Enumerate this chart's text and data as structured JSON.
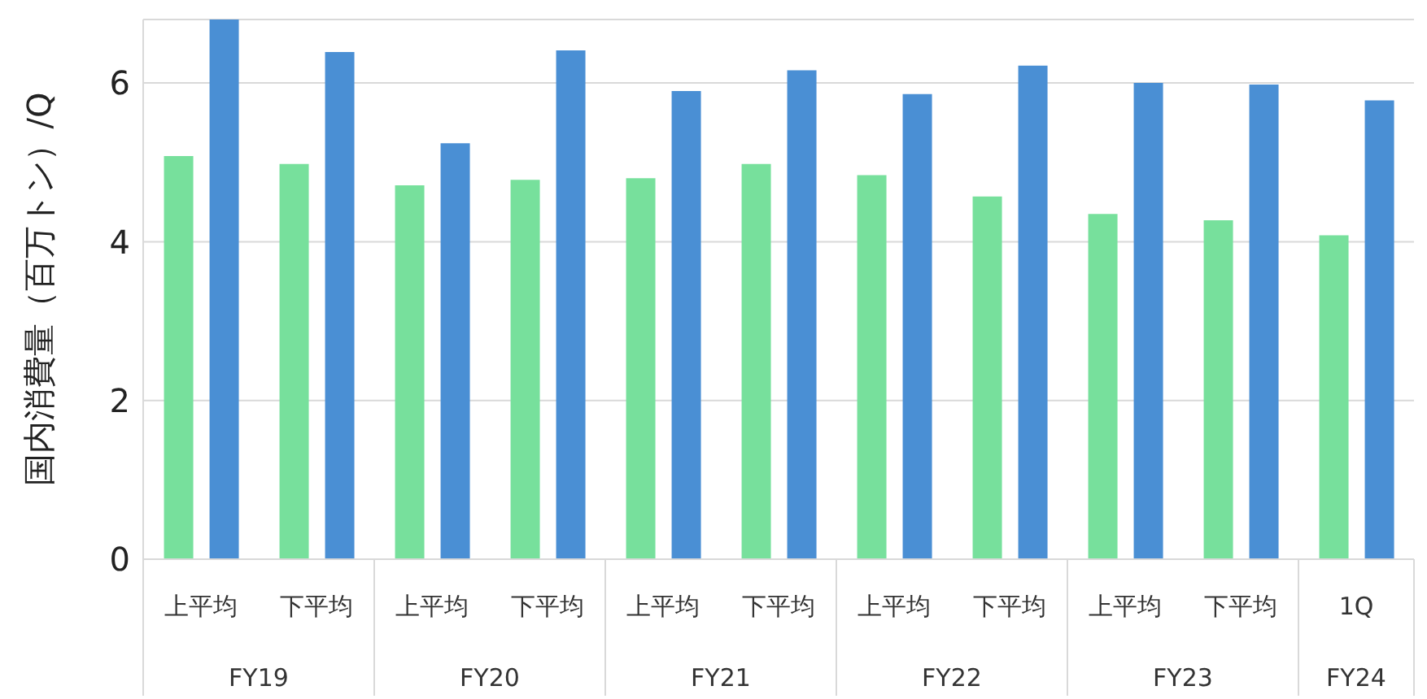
{
  "chart_data": {
    "type": "bar",
    "ylabel": "国内消費量（百万トン）/Q",
    "categories": [
      "上平均",
      "下平均",
      "上平均",
      "下平均",
      "上平均",
      "下平均",
      "上平均",
      "下平均",
      "上平均",
      "下平均",
      "1Q"
    ],
    "annotations": [
      "FY19",
      "FY20",
      "FY21",
      "FY22",
      "FY23",
      "FY24"
    ],
    "series": [
      {
        "color": "#77e09c",
        "values": [
          5.08,
          4.98,
          4.71,
          4.78,
          4.8,
          4.98,
          4.84,
          4.57,
          4.35,
          4.27,
          4.08
        ]
      },
      {
        "color": "#4a8fd4",
        "values": [
          6.8,
          6.39,
          5.24,
          6.41,
          5.9,
          6.16,
          5.86,
          6.22,
          6.0,
          5.98,
          5.78
        ]
      }
    ],
    "ylim": [
      0,
      6.8
    ],
    "yticks": [
      0,
      2,
      4,
      6
    ],
    "grid": "y",
    "legend": false
  }
}
